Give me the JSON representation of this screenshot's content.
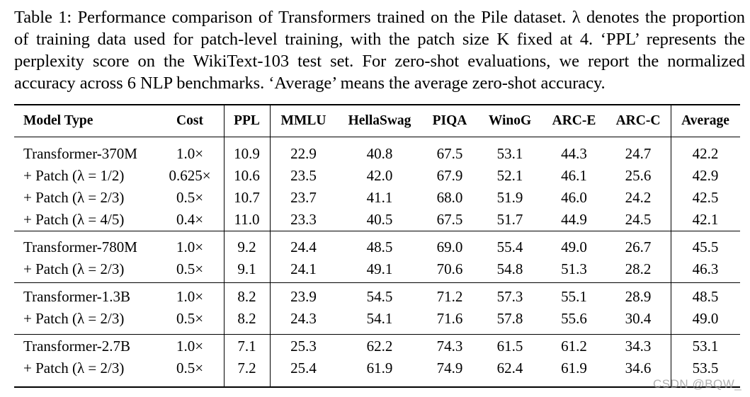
{
  "caption": {
    "lines": [
      "Table 1: Performance comparison of Transformers trained on the Pile dataset. λ denotes the proportion",
      "of training data used for patch-level training, with the patch size K fixed at 4. ‘PPL’ represents the",
      "perplexity score on the WikiText-103 test set. For zero-shot evaluations, we report the normalized",
      "accuracy across 6 NLP benchmarks. ‘Average’ means the average zero-shot accuracy."
    ]
  },
  "table": {
    "headers": [
      "Model Type",
      "Cost",
      "PPL",
      "MMLU",
      "HellaSwag",
      "PIQA",
      "WinoG",
      "ARC-E",
      "ARC-C",
      "Average"
    ],
    "groups": [
      {
        "rows": [
          {
            "model": "Transformer-370M",
            "cost": "1.0×",
            "ppl": "10.9",
            "mmlu": "22.9",
            "hellaswag": "40.8",
            "piqa": "67.5",
            "winog": "53.1",
            "arce": "44.3",
            "arcc": "24.7",
            "average": "42.2"
          },
          {
            "model": "+ Patch (λ = 1/2)",
            "cost": "0.625×",
            "ppl": "10.6",
            "mmlu": "23.5",
            "hellaswag": "42.0",
            "piqa": "67.9",
            "winog": "52.1",
            "arce": "46.1",
            "arcc": "25.6",
            "average": "42.9"
          },
          {
            "model": "+ Patch (λ = 2/3)",
            "cost": "0.5×",
            "ppl": "10.7",
            "mmlu": "23.7",
            "hellaswag": "41.1",
            "piqa": "68.0",
            "winog": "51.9",
            "arce": "46.0",
            "arcc": "24.2",
            "average": "42.5"
          },
          {
            "model": "+ Patch (λ = 4/5)",
            "cost": "0.4×",
            "ppl": "11.0",
            "mmlu": "23.3",
            "hellaswag": "40.5",
            "piqa": "67.5",
            "winog": "51.7",
            "arce": "44.9",
            "arcc": "24.5",
            "average": "42.1"
          }
        ]
      },
      {
        "rows": [
          {
            "model": "Transformer-780M",
            "cost": "1.0×",
            "ppl": "9.2",
            "mmlu": "24.4",
            "hellaswag": "48.5",
            "piqa": "69.0",
            "winog": "55.4",
            "arce": "49.0",
            "arcc": "26.7",
            "average": "45.5"
          },
          {
            "model": "+ Patch (λ = 2/3)",
            "cost": "0.5×",
            "ppl": "9.1",
            "mmlu": "24.1",
            "hellaswag": "49.1",
            "piqa": "70.6",
            "winog": "54.8",
            "arce": "51.3",
            "arcc": "28.2",
            "average": "46.3"
          }
        ]
      },
      {
        "rows": [
          {
            "model": "Transformer-1.3B",
            "cost": "1.0×",
            "ppl": "8.2",
            "mmlu": "23.9",
            "hellaswag": "54.5",
            "piqa": "71.2",
            "winog": "57.3",
            "arce": "55.1",
            "arcc": "28.9",
            "average": "48.5"
          },
          {
            "model": "+ Patch (λ = 2/3)",
            "cost": "0.5×",
            "ppl": "8.2",
            "mmlu": "24.3",
            "hellaswag": "54.1",
            "piqa": "71.6",
            "winog": "57.8",
            "arce": "55.6",
            "arcc": "30.4",
            "average": "49.0"
          }
        ]
      },
      {
        "rows": [
          {
            "model": "Transformer-2.7B",
            "cost": "1.0×",
            "ppl": "7.1",
            "mmlu": "25.3",
            "hellaswag": "62.2",
            "piqa": "74.3",
            "winog": "61.5",
            "arce": "61.2",
            "arcc": "34.3",
            "average": "53.1"
          },
          {
            "model": "+ Patch (λ = 2/3)",
            "cost": "0.5×",
            "ppl": "7.2",
            "mmlu": "25.4",
            "hellaswag": "61.9",
            "piqa": "74.9",
            "winog": "62.4",
            "arce": "61.9",
            "arcc": "34.6",
            "average": "53.5"
          }
        ]
      }
    ]
  },
  "watermark": "CSDN @BQW_"
}
